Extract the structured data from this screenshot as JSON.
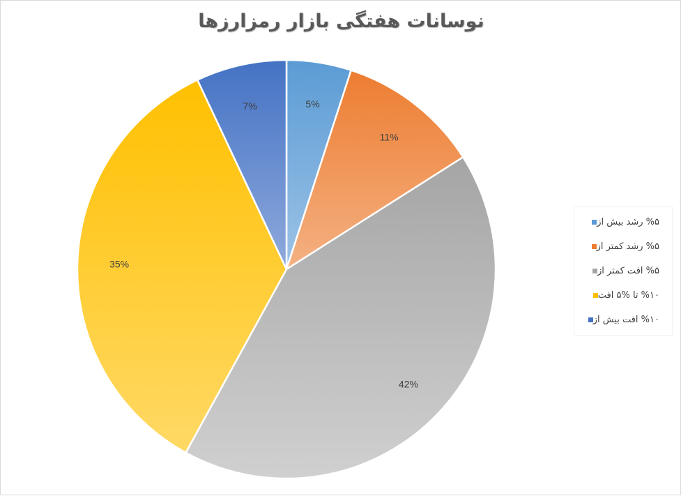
{
  "chart_data": {
    "type": "pie",
    "title": "نوسانات هفتگی بازار رمزارزها",
    "categories": [
      "رشد بیش از ۵%",
      "رشد کمتر از ۵%",
      "افت کمتر از ۵%",
      "افت ۵% تا ۱۰%",
      "افت بیش از ۱۰%"
    ],
    "values": [
      5,
      11,
      42,
      35,
      7
    ],
    "labels": [
      "5%",
      "11%",
      "42%",
      "35%",
      "7%"
    ],
    "colors": [
      "#5b9bd5",
      "#ed7d31",
      "#a5a5a5",
      "#ffc000",
      "#4472c4"
    ],
    "colors_light": [
      "#9dc3e6",
      "#f4b183",
      "#d0d0d0",
      "#ffd966",
      "#8faadc"
    ],
    "legend_position": "right",
    "legend_labels": [
      "%۵ رشد بیش از",
      "%۵ رشد کمتر از",
      "%۵ افت کمتر از",
      "%۱۰ تا %۵ افت",
      "%۱۰ افت بیش از"
    ]
  }
}
